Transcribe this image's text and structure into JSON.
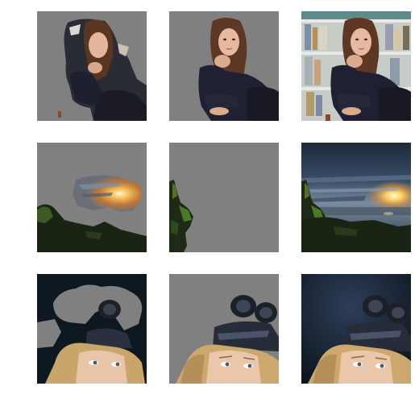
{
  "grid": {
    "rows": [
      {
        "subject": "woman-at-desk",
        "tiles": [
          {
            "content": "masked-background-keep"
          },
          {
            "content": "masked-foreground-keep"
          },
          {
            "content": "original"
          }
        ]
      },
      {
        "subject": "sunset-landscape",
        "tiles": [
          {
            "content": "masked-sky-keep"
          },
          {
            "content": "masked-foreground-keep"
          },
          {
            "content": "original"
          }
        ]
      },
      {
        "subject": "woman-with-goggles",
        "tiles": [
          {
            "content": "masked-background-keep"
          },
          {
            "content": "masked-foreground-keep"
          },
          {
            "content": "original"
          }
        ]
      }
    ],
    "mask_color": "#808080",
    "background_color": "#ffffff"
  }
}
